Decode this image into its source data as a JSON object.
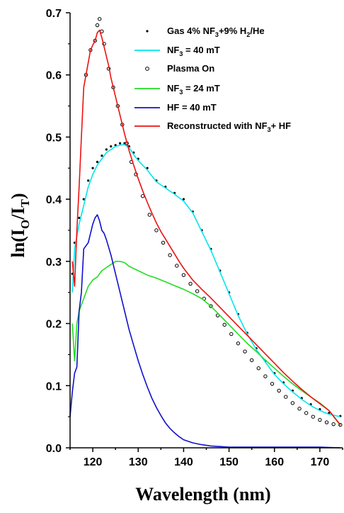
{
  "chart_data": {
    "type": "line",
    "title": "",
    "xlabel": "Wavelength (nm)",
    "ylabel": {
      "prefix": "ln(I",
      "sub1": "O",
      "mid": "/I",
      "sub2": "T",
      "suffix": ")"
    },
    "xlim": [
      115,
      175
    ],
    "ylim": [
      0,
      0.7
    ],
    "x_ticks": [
      "120",
      "130",
      "140",
      "150",
      "160",
      "170"
    ],
    "x_tick_values": [
      120,
      130,
      140,
      150,
      160,
      170
    ],
    "y_ticks": [
      "0.0",
      "0.1",
      "0.2",
      "0.3",
      "0.4",
      "0.5",
      "0.6",
      "0.7"
    ],
    "y_tick_values": [
      0,
      0.1,
      0.2,
      0.3,
      0.4,
      0.5,
      0.6,
      0.7
    ],
    "grid": false,
    "legend_position": "top-right",
    "series": [
      {
        "key": "gas",
        "legend": [
          "Gas 4% NF",
          "3",
          "+9% H",
          "2",
          "/He"
        ],
        "style": "dots",
        "color": "#000000",
        "x": [
          115.5,
          116,
          117,
          118,
          119,
          120,
          121,
          122,
          123,
          124,
          125,
          126,
          127,
          128,
          129,
          130,
          132,
          134,
          136,
          138,
          140,
          142,
          144,
          146,
          148,
          150,
          152,
          154,
          156,
          158,
          160,
          162,
          164,
          166,
          168,
          170,
          172,
          174.5
        ],
        "y": [
          0.28,
          0.33,
          0.37,
          0.4,
          0.43,
          0.45,
          0.46,
          0.47,
          0.48,
          0.485,
          0.487,
          0.49,
          0.49,
          0.485,
          0.475,
          0.465,
          0.45,
          0.43,
          0.42,
          0.41,
          0.4,
          0.38,
          0.35,
          0.32,
          0.285,
          0.25,
          0.215,
          0.185,
          0.16,
          0.14,
          0.12,
          0.105,
          0.092,
          0.08,
          0.07,
          0.062,
          0.056,
          0.051
        ]
      },
      {
        "key": "nf3_40",
        "legend": [
          "NF",
          "3",
          " = 40 mT"
        ],
        "style": "line",
        "color": "#00e5ee",
        "x": [
          115.5,
          116,
          117,
          118,
          119,
          120,
          121,
          122,
          123,
          124,
          125,
          126,
          127,
          128,
          129,
          130,
          132,
          134,
          136,
          138,
          140,
          142,
          144,
          146,
          148,
          150,
          152,
          154,
          156,
          158,
          160,
          162,
          164,
          166,
          168,
          170,
          172,
          174.5
        ],
        "y": [
          0.25,
          0.32,
          0.36,
          0.39,
          0.42,
          0.44,
          0.455,
          0.465,
          0.475,
          0.48,
          0.485,
          0.487,
          0.488,
          0.483,
          0.472,
          0.462,
          0.447,
          0.428,
          0.418,
          0.408,
          0.397,
          0.378,
          0.348,
          0.318,
          0.283,
          0.248,
          0.213,
          0.183,
          0.158,
          0.138,
          0.118,
          0.103,
          0.09,
          0.078,
          0.068,
          0.06,
          0.054,
          0.05
        ]
      },
      {
        "key": "plasma",
        "legend": [
          "Plasma On"
        ],
        "style": "circles",
        "color": "#000000",
        "x": [
          118.5,
          119.5,
          120.5,
          121,
          121.5,
          122,
          122.5,
          123.5,
          124.5,
          125.5,
          126.5,
          127.5,
          128.5,
          129.5,
          131,
          132.5,
          134,
          135.5,
          137,
          138.5,
          140,
          141.5,
          143,
          144.5,
          146,
          147.5,
          149,
          150.5,
          152,
          153.5,
          155,
          156.5,
          158,
          159.5,
          161,
          162.5,
          164,
          165.5,
          167,
          168.5,
          170,
          171.5,
          173,
          174.5
        ],
        "y": [
          0.6,
          0.64,
          0.655,
          0.68,
          0.69,
          0.67,
          0.65,
          0.61,
          0.58,
          0.55,
          0.52,
          0.49,
          0.46,
          0.44,
          0.405,
          0.375,
          0.35,
          0.33,
          0.31,
          0.293,
          0.278,
          0.264,
          0.252,
          0.24,
          0.228,
          0.213,
          0.198,
          0.183,
          0.168,
          0.155,
          0.141,
          0.128,
          0.115,
          0.103,
          0.092,
          0.082,
          0.072,
          0.063,
          0.056,
          0.05,
          0.045,
          0.041,
          0.038,
          0.037
        ]
      },
      {
        "key": "nf3_24",
        "legend": [
          "NF",
          "3",
          " = 24 mT"
        ],
        "style": "line",
        "color": "#22dd22",
        "x": [
          115.5,
          116,
          116.5,
          117,
          118,
          119,
          120,
          121,
          122,
          123,
          124,
          125,
          126,
          127,
          128,
          130,
          132,
          134,
          136,
          138,
          140,
          142,
          144,
          146,
          148,
          150,
          152,
          154,
          156,
          158,
          160,
          162,
          164,
          166,
          168,
          170,
          172,
          174.5
        ],
        "y": [
          0.2,
          0.14,
          0.2,
          0.22,
          0.24,
          0.26,
          0.27,
          0.275,
          0.285,
          0.29,
          0.295,
          0.3,
          0.3,
          0.298,
          0.292,
          0.285,
          0.278,
          0.273,
          0.267,
          0.261,
          0.255,
          0.248,
          0.24,
          0.228,
          0.213,
          0.198,
          0.183,
          0.168,
          0.155,
          0.141,
          0.128,
          0.115,
          0.103,
          0.092,
          0.082,
          0.072,
          0.06,
          0.036
        ]
      },
      {
        "key": "hf_40",
        "legend": [
          "HF = 40 mT"
        ],
        "style": "line",
        "color": "#1010cc",
        "x": [
          115,
          115.5,
          116,
          116.5,
          117,
          117.5,
          118,
          119,
          120,
          120.5,
          121,
          121.5,
          122,
          122.5,
          123,
          124,
          125,
          126,
          127,
          128,
          129,
          130,
          131,
          132,
          133,
          134,
          135,
          136,
          137,
          138,
          139,
          140,
          142,
          144,
          146,
          148,
          150,
          155,
          160,
          165,
          170,
          174.5
        ],
        "y": [
          0.05,
          0.09,
          0.12,
          0.13,
          0.22,
          0.25,
          0.32,
          0.33,
          0.36,
          0.37,
          0.375,
          0.365,
          0.35,
          0.345,
          0.335,
          0.31,
          0.28,
          0.25,
          0.22,
          0.19,
          0.165,
          0.14,
          0.118,
          0.098,
          0.08,
          0.065,
          0.052,
          0.04,
          0.031,
          0.024,
          0.018,
          0.013,
          0.008,
          0.005,
          0.003,
          0.002,
          0.001,
          0.001,
          0.001,
          0.001,
          0.001,
          0.0
        ]
      },
      {
        "key": "recon",
        "legend": [
          "Reconstructed with NF",
          "3",
          "+ HF"
        ],
        "style": "line",
        "color": "#ee1111",
        "x": [
          115.5,
          116,
          116.5,
          117,
          117.5,
          118,
          118.5,
          119,
          119.5,
          120,
          120.5,
          121,
          121.5,
          122,
          122.5,
          123,
          123.5,
          124,
          125,
          126,
          127,
          128,
          129,
          130,
          131,
          132,
          133,
          134,
          135,
          136,
          137,
          138,
          139,
          140,
          142,
          144,
          146,
          148,
          150,
          152,
          154,
          156,
          158,
          160,
          162,
          164,
          166,
          168,
          170,
          172,
          174.5
        ],
        "y": [
          0.3,
          0.26,
          0.35,
          0.42,
          0.5,
          0.58,
          0.6,
          0.62,
          0.64,
          0.648,
          0.655,
          0.668,
          0.672,
          0.66,
          0.645,
          0.63,
          0.615,
          0.595,
          0.565,
          0.535,
          0.505,
          0.478,
          0.455,
          0.433,
          0.413,
          0.395,
          0.378,
          0.362,
          0.348,
          0.336,
          0.324,
          0.312,
          0.3,
          0.289,
          0.27,
          0.255,
          0.241,
          0.226,
          0.211,
          0.196,
          0.181,
          0.166,
          0.151,
          0.136,
          0.121,
          0.107,
          0.094,
          0.082,
          0.071,
          0.06,
          0.037
        ]
      }
    ]
  }
}
